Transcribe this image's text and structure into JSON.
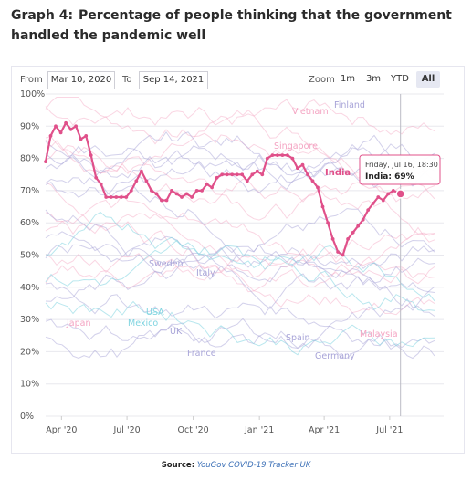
{
  "title": {
    "number": "Graph 4:",
    "text": "Percentage of people thinking that the government handled the pandemic well"
  },
  "controls": {
    "from_label": "From",
    "from_value": "Mar 10, 2020",
    "to_label": "To",
    "to_value": "Sep 14, 2021",
    "zoom_label": "Zoom",
    "zoom_options": [
      "1m",
      "3m",
      "YTD",
      "All"
    ],
    "zoom_selected": "All"
  },
  "tooltip": {
    "date": "Friday, Jul 16, 18:30",
    "series": "India",
    "value": "69%"
  },
  "source": {
    "label": "Source:",
    "value": "YouGov COVID-19 Tracker UK"
  },
  "colors": {
    "india": "#e0508a",
    "pink_bg": "#f4a3c2",
    "purple_bg": "#a8a4d8",
    "cyan_bg": "#7fd4e0",
    "grid": "#e8e8ee",
    "tooltip_border": "#e0508a"
  },
  "chart_data": {
    "type": "line",
    "x_type": "date",
    "x_ticks": [
      "Apr '20",
      "Jul '20",
      "Oct '20",
      "Jan '21",
      "Apr '21",
      "Jul '21"
    ],
    "y_ticks": [
      "0%",
      "10%",
      "20%",
      "30%",
      "40%",
      "50%",
      "60%",
      "70%",
      "80%",
      "90%",
      "100%"
    ],
    "ylim": [
      0,
      100
    ],
    "xlim": [
      "2020-03-10",
      "2021-09-14"
    ],
    "grid": true,
    "highlight_series": "India",
    "series": [
      {
        "name": "India",
        "x": [
          "2020-03-10",
          "2020-03-17",
          "2020-03-24",
          "2020-03-31",
          "2020-04-07",
          "2020-04-14",
          "2020-04-21",
          "2020-04-28",
          "2020-05-05",
          "2020-05-12",
          "2020-05-19",
          "2020-05-26",
          "2020-06-02",
          "2020-06-09",
          "2020-06-16",
          "2020-06-23",
          "2020-06-30",
          "2020-07-07",
          "2020-07-14",
          "2020-07-21",
          "2020-07-28",
          "2020-08-04",
          "2020-08-11",
          "2020-08-18",
          "2020-08-25",
          "2020-09-01",
          "2020-09-08",
          "2020-09-15",
          "2020-09-22",
          "2020-09-29",
          "2020-10-06",
          "2020-10-13",
          "2020-10-20",
          "2020-10-27",
          "2020-11-03",
          "2020-11-10",
          "2020-11-17",
          "2020-11-24",
          "2020-12-01",
          "2020-12-08",
          "2020-12-15",
          "2020-12-22",
          "2020-12-29",
          "2021-01-05",
          "2021-01-12",
          "2021-01-19",
          "2021-01-26",
          "2021-02-02",
          "2021-02-09",
          "2021-02-16",
          "2021-02-23",
          "2021-03-02",
          "2021-03-09",
          "2021-03-16",
          "2021-03-23",
          "2021-03-30",
          "2021-04-06",
          "2021-04-13",
          "2021-04-20",
          "2021-04-27",
          "2021-05-04",
          "2021-05-11",
          "2021-05-18",
          "2021-05-25",
          "2021-06-01",
          "2021-06-08",
          "2021-06-15",
          "2021-06-22",
          "2021-06-29",
          "2021-07-06",
          "2021-07-16"
        ],
        "y": [
          79,
          87,
          90,
          88,
          91,
          89,
          90,
          86,
          87,
          81,
          74,
          72,
          68,
          68,
          68,
          68,
          68,
          70,
          73,
          76,
          73,
          70,
          69,
          67,
          67,
          70,
          69,
          68,
          69,
          68,
          70,
          70,
          72,
          71,
          74,
          75,
          75,
          75,
          75,
          75,
          73,
          75,
          76,
          75,
          80,
          81,
          81,
          81,
          81,
          80,
          77,
          78,
          75,
          73,
          71,
          65,
          60,
          55,
          51,
          50,
          55,
          57,
          59,
          61,
          64,
          66,
          68,
          67,
          69,
          70,
          69
        ]
      }
    ],
    "labels": [
      "India",
      "Vietnam",
      "Finland",
      "Singapore",
      "Sweden",
      "Italy",
      "USA",
      "Mexico",
      "UK",
      "France",
      "Japan",
      "Spain",
      "Germany",
      "Malaysia"
    ]
  }
}
